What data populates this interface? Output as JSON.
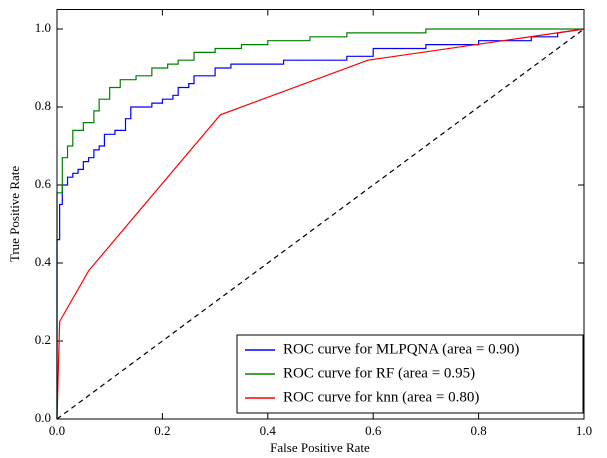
{
  "chart_data": {
    "type": "line",
    "xlabel": "False Positive Rate",
    "ylabel": "True Positive Rate",
    "xlim": [
      0,
      1
    ],
    "ylim": [
      0,
      1.05
    ],
    "xticks": [
      {
        "value": 0,
        "label": "0.0"
      },
      {
        "value": 0.2,
        "label": "0.2"
      },
      {
        "value": 0.4,
        "label": "0.4"
      },
      {
        "value": 0.6,
        "label": "0.6"
      },
      {
        "value": 0.8,
        "label": "0.8"
      },
      {
        "value": 1,
        "label": "1.0"
      }
    ],
    "yticks": [
      {
        "value": 0,
        "label": "0.0"
      },
      {
        "value": 0.2,
        "label": "0.2"
      },
      {
        "value": 0.4,
        "label": "0.4"
      },
      {
        "value": 0.6,
        "label": "0.6"
      },
      {
        "value": 0.8,
        "label": "0.8"
      },
      {
        "value": 1,
        "label": "1.0"
      }
    ],
    "legend_position": "lower right",
    "series": [
      {
        "name": "ROC curve for MLPQNA (area = 0.90)",
        "color": "#0000ff",
        "x": [
          0,
          0,
          0.005,
          0.005,
          0.01,
          0.01,
          0.02,
          0.02,
          0.03,
          0.03,
          0.04,
          0.04,
          0.05,
          0.05,
          0.06,
          0.06,
          0.07,
          0.07,
          0.08,
          0.08,
          0.09,
          0.09,
          0.11,
          0.11,
          0.13,
          0.13,
          0.14,
          0.14,
          0.18,
          0.18,
          0.2,
          0.2,
          0.22,
          0.22,
          0.23,
          0.23,
          0.25,
          0.25,
          0.26,
          0.26,
          0.3,
          0.3,
          0.33,
          0.33,
          0.43,
          0.43,
          0.55,
          0.55,
          0.6,
          0.6,
          0.7,
          0.7,
          0.8,
          0.8,
          0.9,
          0.9,
          0.95,
          0.95,
          1
        ],
        "values": [
          0,
          0.46,
          0.46,
          0.55,
          0.55,
          0.6,
          0.6,
          0.62,
          0.62,
          0.63,
          0.63,
          0.64,
          0.64,
          0.66,
          0.66,
          0.67,
          0.67,
          0.69,
          0.69,
          0.7,
          0.7,
          0.73,
          0.73,
          0.74,
          0.74,
          0.77,
          0.77,
          0.8,
          0.8,
          0.81,
          0.81,
          0.82,
          0.82,
          0.83,
          0.83,
          0.85,
          0.85,
          0.86,
          0.86,
          0.88,
          0.88,
          0.9,
          0.9,
          0.91,
          0.91,
          0.92,
          0.92,
          0.93,
          0.93,
          0.95,
          0.95,
          0.96,
          0.96,
          0.97,
          0.97,
          0.98,
          0.98,
          0.99,
          1
        ]
      },
      {
        "name": "ROC curve for RF (area = 0.95)",
        "color": "#008000",
        "x": [
          0,
          0,
          0.01,
          0.01,
          0.02,
          0.02,
          0.03,
          0.03,
          0.05,
          0.05,
          0.07,
          0.07,
          0.08,
          0.08,
          0.1,
          0.1,
          0.12,
          0.12,
          0.15,
          0.15,
          0.18,
          0.18,
          0.21,
          0.21,
          0.23,
          0.23,
          0.26,
          0.26,
          0.3,
          0.3,
          0.35,
          0.35,
          0.4,
          0.4,
          0.48,
          0.48,
          0.55,
          0.55,
          0.7,
          0.7,
          1
        ],
        "values": [
          0,
          0.58,
          0.58,
          0.67,
          0.67,
          0.7,
          0.7,
          0.74,
          0.74,
          0.76,
          0.76,
          0.79,
          0.79,
          0.82,
          0.82,
          0.85,
          0.85,
          0.87,
          0.87,
          0.88,
          0.88,
          0.9,
          0.9,
          0.91,
          0.91,
          0.92,
          0.92,
          0.94,
          0.94,
          0.95,
          0.95,
          0.96,
          0.96,
          0.97,
          0.97,
          0.98,
          0.98,
          0.99,
          0.99,
          1,
          1
        ]
      },
      {
        "name": "ROC curve for knn (area = 0.80)",
        "color": "#ff0000",
        "x": [
          0,
          0.005,
          0.06,
          0.31,
          0.59,
          1
        ],
        "values": [
          0,
          0.25,
          0.38,
          0.78,
          0.92,
          1
        ]
      }
    ],
    "reference_line": {
      "x": [
        0,
        1
      ],
      "values": [
        0,
        1
      ],
      "color": "#000000",
      "dashed": true
    }
  }
}
